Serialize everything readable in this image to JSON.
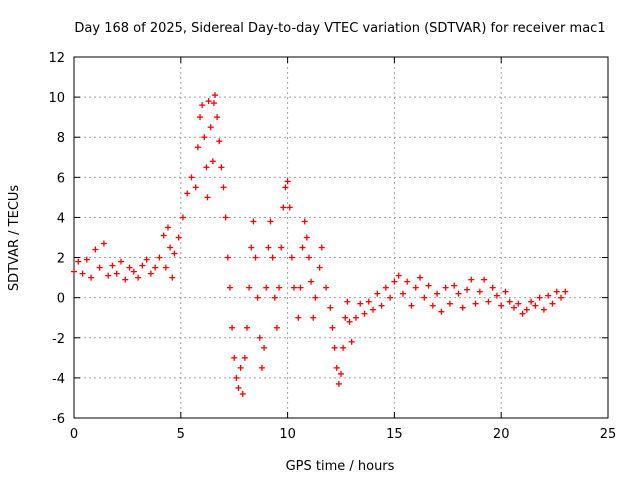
{
  "chart_data": {
    "type": "scatter",
    "title": "Day 168 of 2025, Sidereal Day-to-day VTEC variation (SDTVAR) for receiver mac1",
    "xlabel": "GPS time / hours",
    "ylabel": "SDTVAR / TECUs",
    "xlim": [
      0,
      25
    ],
    "ylim": [
      -6,
      12
    ],
    "xticks": [
      0,
      5,
      10,
      15,
      20,
      25
    ],
    "yticks": [
      -6,
      -4,
      -2,
      0,
      2,
      4,
      6,
      8,
      10,
      12
    ],
    "grid": true,
    "marker": "+",
    "color": "#ff0000",
    "series": [
      {
        "name": "SDTVAR",
        "points": [
          [
            0.0,
            1.3
          ],
          [
            0.2,
            1.8
          ],
          [
            0.4,
            1.2
          ],
          [
            0.6,
            1.9
          ],
          [
            0.8,
            1.0
          ],
          [
            1.0,
            2.4
          ],
          [
            1.2,
            1.5
          ],
          [
            1.4,
            2.7
          ],
          [
            1.6,
            1.1
          ],
          [
            1.8,
            1.6
          ],
          [
            2.0,
            1.2
          ],
          [
            2.2,
            1.8
          ],
          [
            2.4,
            0.9
          ],
          [
            2.6,
            1.5
          ],
          [
            2.8,
            1.3
          ],
          [
            3.0,
            1.0
          ],
          [
            3.2,
            1.6
          ],
          [
            3.4,
            1.9
          ],
          [
            3.6,
            1.2
          ],
          [
            3.8,
            1.5
          ],
          [
            4.0,
            2.0
          ],
          [
            4.2,
            3.1
          ],
          [
            4.4,
            3.5
          ],
          [
            4.5,
            2.5
          ],
          [
            4.3,
            1.5
          ],
          [
            4.6,
            1.0
          ],
          [
            4.7,
            2.2
          ],
          [
            4.9,
            3.0
          ],
          [
            5.1,
            4.0
          ],
          [
            5.3,
            5.2
          ],
          [
            5.5,
            6.0
          ],
          [
            5.7,
            5.5
          ],
          [
            5.8,
            7.5
          ],
          [
            5.9,
            9.0
          ],
          [
            6.0,
            9.6
          ],
          [
            6.1,
            8.0
          ],
          [
            6.2,
            6.5
          ],
          [
            6.25,
            5.0
          ],
          [
            6.3,
            9.8
          ],
          [
            6.4,
            8.5
          ],
          [
            6.5,
            6.8
          ],
          [
            6.55,
            9.7
          ],
          [
            6.6,
            10.1
          ],
          [
            6.7,
            9.0
          ],
          [
            6.8,
            7.8
          ],
          [
            6.9,
            6.5
          ],
          [
            7.0,
            5.5
          ],
          [
            7.1,
            4.0
          ],
          [
            7.2,
            2.0
          ],
          [
            7.3,
            0.5
          ],
          [
            7.4,
            -1.5
          ],
          [
            7.5,
            -3.0
          ],
          [
            7.6,
            -4.0
          ],
          [
            7.7,
            -4.5
          ],
          [
            7.8,
            -3.5
          ],
          [
            7.9,
            -4.8
          ],
          [
            8.0,
            -3.0
          ],
          [
            8.1,
            -1.5
          ],
          [
            8.2,
            0.5
          ],
          [
            8.3,
            2.5
          ],
          [
            8.4,
            3.8
          ],
          [
            8.5,
            2.0
          ],
          [
            8.6,
            0.0
          ],
          [
            8.7,
            -2.0
          ],
          [
            8.8,
            -3.5
          ],
          [
            8.9,
            -2.5
          ],
          [
            9.0,
            0.5
          ],
          [
            9.1,
            2.5
          ],
          [
            9.2,
            3.8
          ],
          [
            9.3,
            2.0
          ],
          [
            9.4,
            0.0
          ],
          [
            9.5,
            -1.5
          ],
          [
            9.6,
            0.5
          ],
          [
            9.7,
            2.5
          ],
          [
            9.8,
            4.5
          ],
          [
            9.9,
            5.5
          ],
          [
            10.0,
            5.8
          ],
          [
            10.1,
            4.5
          ],
          [
            10.2,
            2.0
          ],
          [
            10.3,
            0.5
          ],
          [
            10.5,
            -1.0
          ],
          [
            10.6,
            0.5
          ],
          [
            10.7,
            2.5
          ],
          [
            10.8,
            3.8
          ],
          [
            10.9,
            3.0
          ],
          [
            11.0,
            2.0
          ],
          [
            11.1,
            0.8
          ],
          [
            11.2,
            -1.0
          ],
          [
            11.3,
            0.0
          ],
          [
            11.5,
            1.5
          ],
          [
            11.6,
            2.5
          ],
          [
            11.8,
            0.5
          ],
          [
            12.0,
            -0.5
          ],
          [
            12.1,
            -1.5
          ],
          [
            12.2,
            -2.5
          ],
          [
            12.3,
            -3.5
          ],
          [
            12.4,
            -4.3
          ],
          [
            12.5,
            -3.8
          ],
          [
            12.6,
            -2.5
          ],
          [
            12.7,
            -1.0
          ],
          [
            12.8,
            -0.2
          ],
          [
            12.9,
            -1.2
          ],
          [
            13.0,
            -2.2
          ],
          [
            13.2,
            -1.0
          ],
          [
            13.4,
            -0.3
          ],
          [
            13.6,
            -0.8
          ],
          [
            13.8,
            -0.2
          ],
          [
            14.0,
            -0.6
          ],
          [
            14.2,
            0.2
          ],
          [
            14.4,
            -0.4
          ],
          [
            14.6,
            0.5
          ],
          [
            14.8,
            0.0
          ],
          [
            15.0,
            0.8
          ],
          [
            15.2,
            1.1
          ],
          [
            15.4,
            0.2
          ],
          [
            15.6,
            0.8
          ],
          [
            15.8,
            -0.4
          ],
          [
            16.0,
            0.5
          ],
          [
            16.2,
            1.0
          ],
          [
            16.4,
            0.0
          ],
          [
            16.6,
            0.6
          ],
          [
            16.8,
            -0.4
          ],
          [
            17.0,
            0.2
          ],
          [
            17.2,
            -0.7
          ],
          [
            17.4,
            0.5
          ],
          [
            17.6,
            -0.3
          ],
          [
            17.8,
            0.6
          ],
          [
            18.0,
            0.2
          ],
          [
            18.2,
            -0.5
          ],
          [
            18.4,
            0.4
          ],
          [
            18.6,
            0.9
          ],
          [
            18.8,
            -0.3
          ],
          [
            19.0,
            0.3
          ],
          [
            19.2,
            0.9
          ],
          [
            19.4,
            -0.2
          ],
          [
            19.6,
            0.5
          ],
          [
            19.8,
            0.1
          ],
          [
            20.0,
            -0.4
          ],
          [
            20.2,
            0.3
          ],
          [
            20.4,
            -0.2
          ],
          [
            20.6,
            -0.5
          ],
          [
            20.8,
            -0.3
          ],
          [
            21.0,
            -0.8
          ],
          [
            21.2,
            -0.6
          ],
          [
            21.4,
            -0.2
          ],
          [
            21.6,
            -0.4
          ],
          [
            21.8,
            0.0
          ],
          [
            22.0,
            -0.6
          ],
          [
            22.2,
            0.1
          ],
          [
            22.4,
            -0.3
          ],
          [
            22.6,
            0.3
          ],
          [
            22.8,
            0.0
          ],
          [
            23.0,
            0.3
          ]
        ]
      }
    ]
  }
}
